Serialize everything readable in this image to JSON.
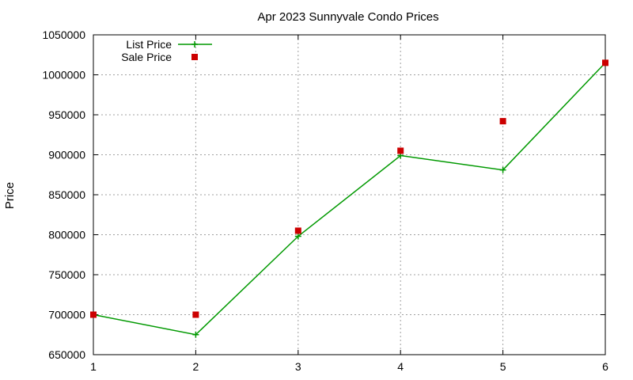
{
  "chart_data": {
    "type": "line",
    "title": "Apr 2023 Sunnyvale Condo Prices",
    "xlabel": "",
    "ylabel": "Price",
    "xlim": [
      1,
      6
    ],
    "ylim": [
      650000,
      1050000
    ],
    "x_ticks": [
      1,
      2,
      3,
      4,
      5,
      6
    ],
    "y_ticks": [
      650000,
      700000,
      750000,
      800000,
      850000,
      900000,
      950000,
      1000000,
      1050000
    ],
    "grid": true,
    "legend_position": "top-left",
    "series": [
      {
        "name": "List Price",
        "style": "line+points",
        "marker": "plus",
        "color": "#009900",
        "points": [
          {
            "x": 1,
            "y": 700000
          },
          {
            "x": 2,
            "y": 675000
          },
          {
            "x": 3,
            "y": 798000
          },
          {
            "x": 4,
            "y": 899000
          },
          {
            "x": 5,
            "y": 881000
          },
          {
            "x": 6,
            "y": 1015000
          }
        ]
      },
      {
        "name": "Sale Price",
        "style": "points",
        "marker": "square",
        "color": "#cc0000",
        "points": [
          {
            "x": 1,
            "y": 700000
          },
          {
            "x": 2,
            "y": 700000
          },
          {
            "x": 3,
            "y": 805000
          },
          {
            "x": 4,
            "y": 905000
          },
          {
            "x": 5,
            "y": 942000
          },
          {
            "x": 6,
            "y": 1015000
          }
        ]
      }
    ]
  }
}
